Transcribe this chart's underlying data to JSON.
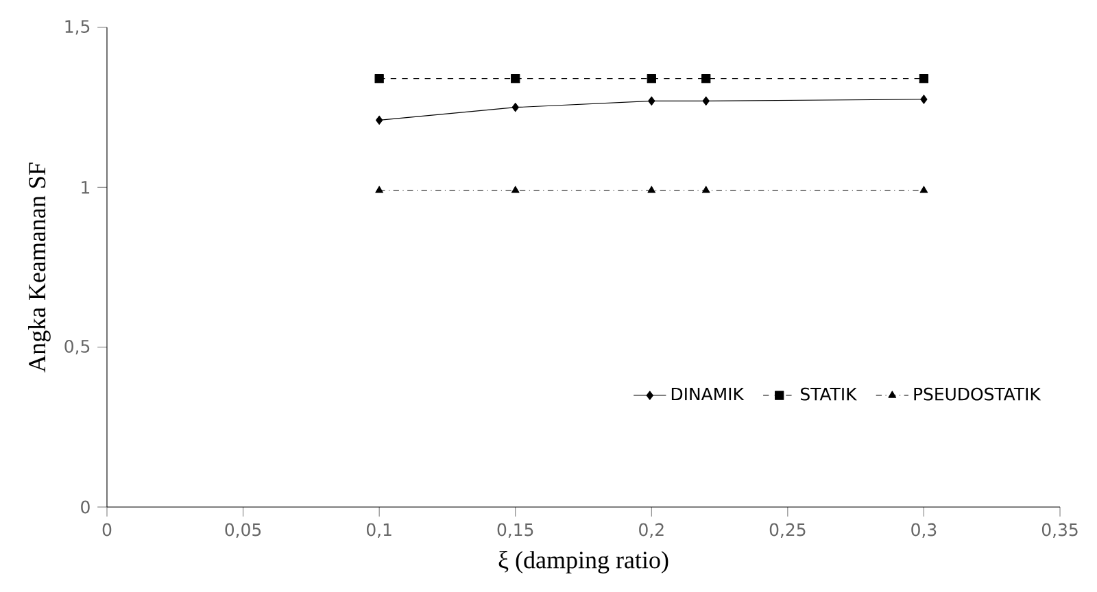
{
  "chart_data": {
    "type": "line",
    "xlabel": "ξ (damping ratio)",
    "ylabel": "Angka Keamanan SF",
    "x": [
      0.1,
      0.15,
      0.2,
      0.22,
      0.3
    ],
    "series": [
      {
        "name": "DINAMIK",
        "color": "#000000",
        "values": [
          1.21,
          1.25,
          1.27,
          1.27,
          1.275
        ],
        "marker": "diamond",
        "line_style": "solid"
      },
      {
        "name": "STATIK",
        "color": "#000000",
        "values": [
          1.34,
          1.34,
          1.34,
          1.34,
          1.34
        ],
        "marker": "square",
        "line_style": "dashed"
      },
      {
        "name": "PSEUDOSTATIK",
        "color": "#000000",
        "values": [
          0.99,
          0.99,
          0.99,
          0.99,
          0.99
        ],
        "marker": "triangle",
        "line_style": "dashdot"
      }
    ],
    "xlim": [
      0,
      0.35
    ],
    "ylim": [
      0,
      1.5
    ],
    "xticks": [
      {
        "value": 0,
        "label": "0"
      },
      {
        "value": 0.05,
        "label": "0,05"
      },
      {
        "value": 0.1,
        "label": "0,1"
      },
      {
        "value": 0.15,
        "label": "0,15"
      },
      {
        "value": 0.2,
        "label": "0,2"
      },
      {
        "value": 0.25,
        "label": "0,25"
      },
      {
        "value": 0.3,
        "label": "0,3"
      },
      {
        "value": 0.35,
        "label": "0,35"
      }
    ],
    "yticks": [
      {
        "value": 0,
        "label": "0"
      },
      {
        "value": 0.5,
        "label": "0,5"
      },
      {
        "value": 1,
        "label": "1"
      },
      {
        "value": 1.5,
        "label": "1,5"
      }
    ],
    "grid": false,
    "legend": "bottom right"
  }
}
